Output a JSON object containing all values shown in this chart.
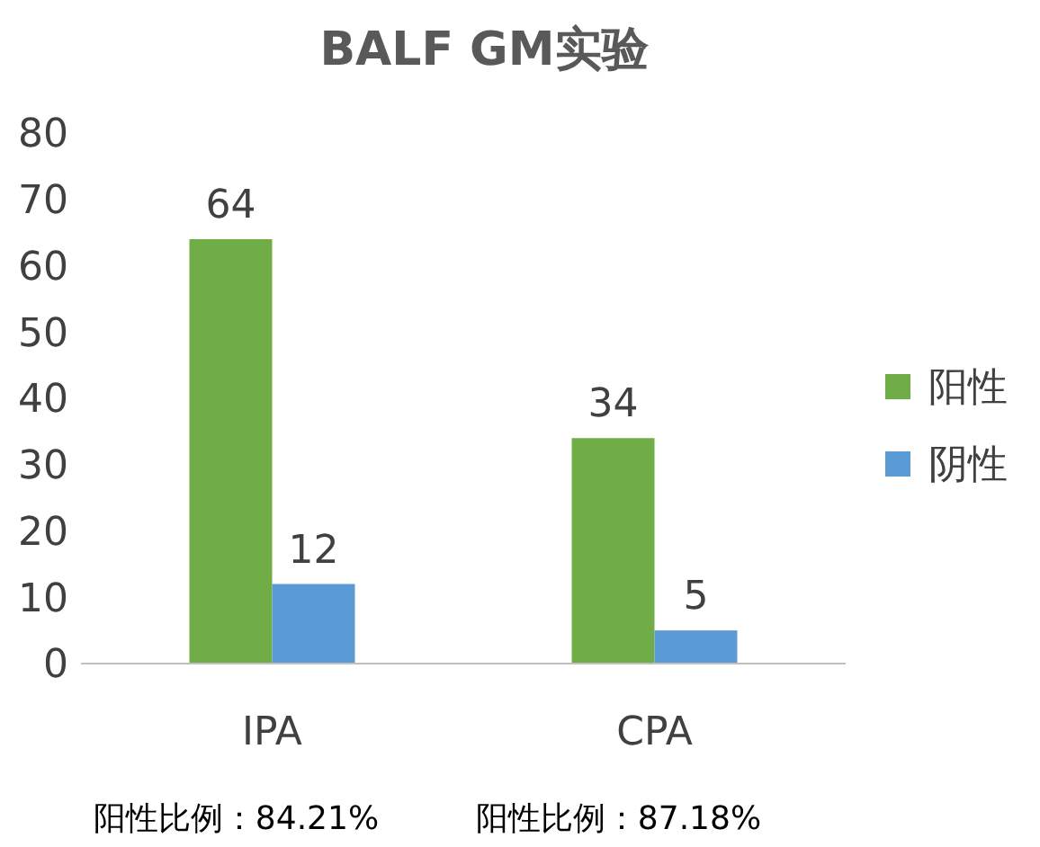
{
  "chart_data": {
    "type": "bar",
    "title": "BALF GM实验",
    "categories": [
      "IPA",
      "CPA"
    ],
    "series": [
      {
        "name": "阳性",
        "color": "#70ad47",
        "values": [
          64,
          34
        ]
      },
      {
        "name": "阴性",
        "color": "#5b9bd5",
        "values": [
          12,
          5
        ]
      }
    ],
    "ylim": [
      0,
      80
    ],
    "yticks": [
      0,
      10,
      20,
      30,
      40,
      50,
      60,
      70,
      80
    ],
    "grid": false,
    "legend": "right",
    "data_labels": true,
    "annotations": [
      "阳性比例：84.21%",
      "阳性比例：87.18%"
    ]
  }
}
